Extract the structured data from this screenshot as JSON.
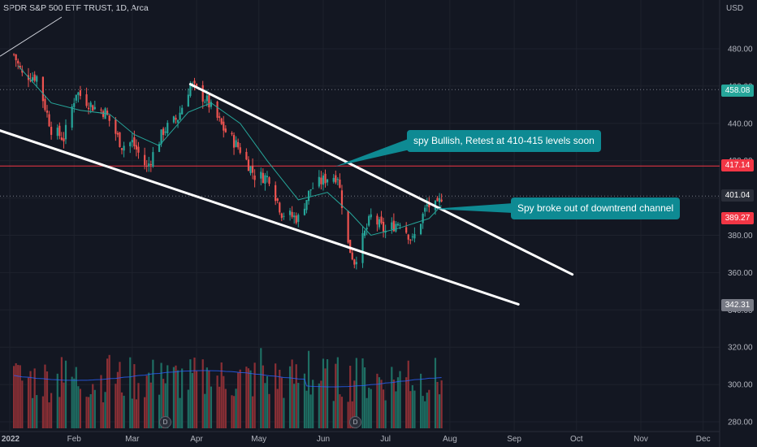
{
  "header": {
    "title": "SPDR S&P 500 ETF TRUST, 1D, Arca",
    "currency": "USD"
  },
  "price_tags": [
    {
      "label": "458.08",
      "color": "#26a69a"
    },
    {
      "label": "417.14",
      "color": "#f23645"
    },
    {
      "label": "401.04",
      "color": "#2a2e39"
    },
    {
      "label": "389.27",
      "color": "#f23645"
    },
    {
      "label": "342.31",
      "color": "#787b86"
    }
  ],
  "callouts": [
    {
      "text": "spy Bullish, Retest at 410-415 levels soon"
    },
    {
      "text": "Spy broke out of downtrend channel"
    }
  ],
  "dividend_badge": "D",
  "chart_data": {
    "type": "candlestick",
    "title": "SPDR S&P 500 ETF TRUST, 1D, Arca",
    "ylabel": "USD",
    "ylim": [
      275,
      500
    ],
    "y_ticks": [
      "480.00",
      "460.00",
      "440.00",
      "420.00",
      "400.00",
      "380.00",
      "360.00",
      "340.00",
      "320.00",
      "300.00",
      "280.00"
    ],
    "x_ticks": [
      "2022",
      "Feb",
      "Mar",
      "Apr",
      "May",
      "Jun",
      "Jul",
      "Aug",
      "Sep",
      "Oct",
      "Nov",
      "Dec"
    ],
    "close_path": [
      [
        "2022-01-03",
        477
      ],
      [
        "2022-01-07",
        466
      ],
      [
        "2022-01-14",
        465
      ],
      [
        "2022-01-21",
        437
      ],
      [
        "2022-01-27",
        432
      ],
      [
        "2022-02-02",
        457
      ],
      [
        "2022-02-10",
        449
      ],
      [
        "2022-02-16",
        446
      ],
      [
        "2022-02-24",
        428
      ],
      [
        "2022-03-01",
        430
      ],
      [
        "2022-03-08",
        416
      ],
      [
        "2022-03-16",
        436
      ],
      [
        "2022-03-23",
        443
      ],
      [
        "2022-03-29",
        461
      ],
      [
        "2022-04-06",
        452
      ],
      [
        "2022-04-14",
        437
      ],
      [
        "2022-04-22",
        426
      ],
      [
        "2022-04-29",
        412
      ],
      [
        "2022-05-06",
        411
      ],
      [
        "2022-05-12",
        392
      ],
      [
        "2022-05-20",
        389
      ],
      [
        "2022-05-26",
        405
      ],
      [
        "2022-06-03",
        411
      ],
      [
        "2022-06-08",
        412
      ],
      [
        "2022-06-13",
        375
      ],
      [
        "2022-06-16",
        366
      ],
      [
        "2022-06-24",
        390
      ],
      [
        "2022-07-01",
        382
      ],
      [
        "2022-07-08",
        388
      ],
      [
        "2022-07-14",
        377
      ],
      [
        "2022-07-21",
        396
      ],
      [
        "2022-07-26",
        395
      ],
      [
        "2022-07-28",
        401
      ]
    ],
    "moving_average_path": [
      [
        "2022-01-05",
        471
      ],
      [
        "2022-01-21",
        451
      ],
      [
        "2022-02-04",
        447
      ],
      [
        "2022-02-18",
        445
      ],
      [
        "2022-03-02",
        434
      ],
      [
        "2022-03-14",
        428
      ],
      [
        "2022-03-28",
        446
      ],
      [
        "2022-04-08",
        451
      ],
      [
        "2022-04-22",
        440
      ],
      [
        "2022-05-05",
        420
      ],
      [
        "2022-05-20",
        399
      ],
      [
        "2022-06-03",
        403
      ],
      [
        "2022-06-14",
        392
      ],
      [
        "2022-06-24",
        380
      ],
      [
        "2022-07-08",
        384
      ],
      [
        "2022-07-22",
        389
      ],
      [
        "2022-07-28",
        396
      ]
    ],
    "volume_bars": 145,
    "volume_scale_max": 100,
    "trendlines": [
      {
        "name": "upper channel",
        "from": [
          "2022-03-29",
          461
        ],
        "to": [
          "2022-09-29",
          359
        ]
      },
      {
        "name": "lower channel",
        "from": [
          "2021-12-17",
          440
        ],
        "to": [
          "2022-09-03",
          343
        ]
      },
      {
        "name": "resistance 417.14",
        "value": 417.14,
        "color": "#f23645"
      },
      {
        "name": "level 458.08",
        "value": 458.08,
        "style": "dotted"
      },
      {
        "name": "level 401.04",
        "value": 401.04,
        "style": "dotted"
      }
    ],
    "annotations": [
      "spy Bullish, Retest at 410-415 levels soon",
      "Spy broke out of downtrend channel"
    ],
    "grid": true
  }
}
